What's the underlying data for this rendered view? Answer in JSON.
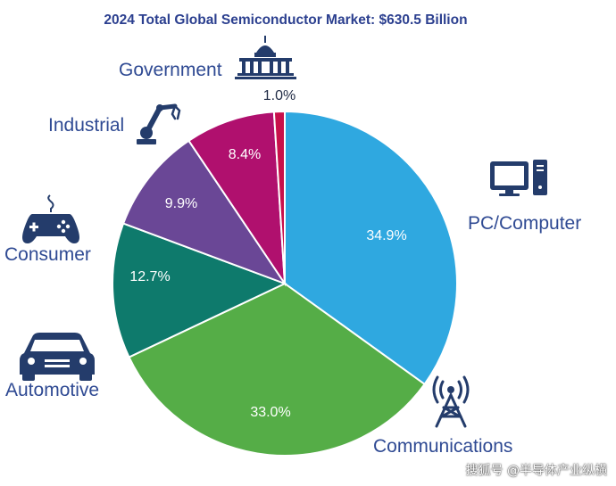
{
  "chart_data": {
    "type": "pie",
    "title": "2024 Total Global Semiconductor Market: $630.5 Billion",
    "slices": [
      {
        "name": "PC/Computer",
        "value": 34.9,
        "label": "34.9%",
        "color": "#2fa8e0",
        "icon": "computer-icon"
      },
      {
        "name": "Communications",
        "value": 33.0,
        "label": "33.0%",
        "color": "#55ad47",
        "icon": "cell-tower-icon"
      },
      {
        "name": "Automotive",
        "value": 12.7,
        "label": "12.7%",
        "color": "#0e7a6c",
        "icon": "car-icon"
      },
      {
        "name": "Consumer",
        "value": 9.9,
        "label": "9.9%",
        "color": "#6a4796",
        "icon": "gamepad-icon"
      },
      {
        "name": "Industrial",
        "value": 8.4,
        "label": "8.4%",
        "color": "#b0106e",
        "icon": "robot-arm-icon"
      },
      {
        "name": "Government",
        "value": 1.0,
        "label": "1.0%",
        "color": "#c8104b",
        "icon": "capitol-icon"
      }
    ],
    "start_angle_deg": 0,
    "direction": "clockwise",
    "legend": "none"
  },
  "watermark": "搜狐号 @半导体产业纵横"
}
